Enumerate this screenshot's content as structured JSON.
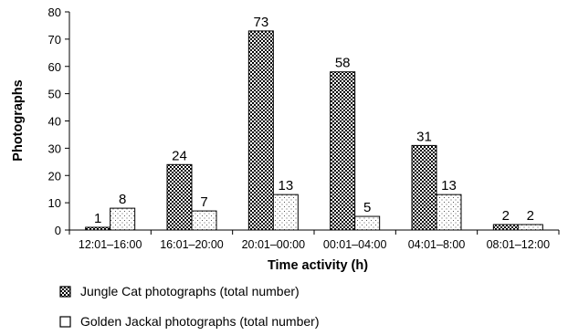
{
  "chart_data": {
    "type": "bar",
    "xlabel": "Time activity (h)",
    "ylabel": "Photographs",
    "ylim": [
      0,
      80
    ],
    "yticks": [
      0,
      10,
      20,
      30,
      40,
      50,
      60,
      70,
      80
    ],
    "grid": false,
    "legend_position": "bottom-left",
    "categories": [
      "12:01–16:00",
      "16:01–20:00",
      "20:01–00:00",
      "00:01–04:00",
      "04:01–8:00",
      "08:01–12:00"
    ],
    "series": [
      {
        "name": "Jungle Cat photographs (total number)",
        "values": [
          1,
          24,
          73,
          58,
          31,
          2
        ],
        "pattern": "checker",
        "color": "#333333"
      },
      {
        "name": "Golden Jackal photographs (total number)",
        "values": [
          8,
          7,
          13,
          5,
          13,
          2
        ],
        "pattern": "dots",
        "color": "#ffffff"
      }
    ]
  }
}
